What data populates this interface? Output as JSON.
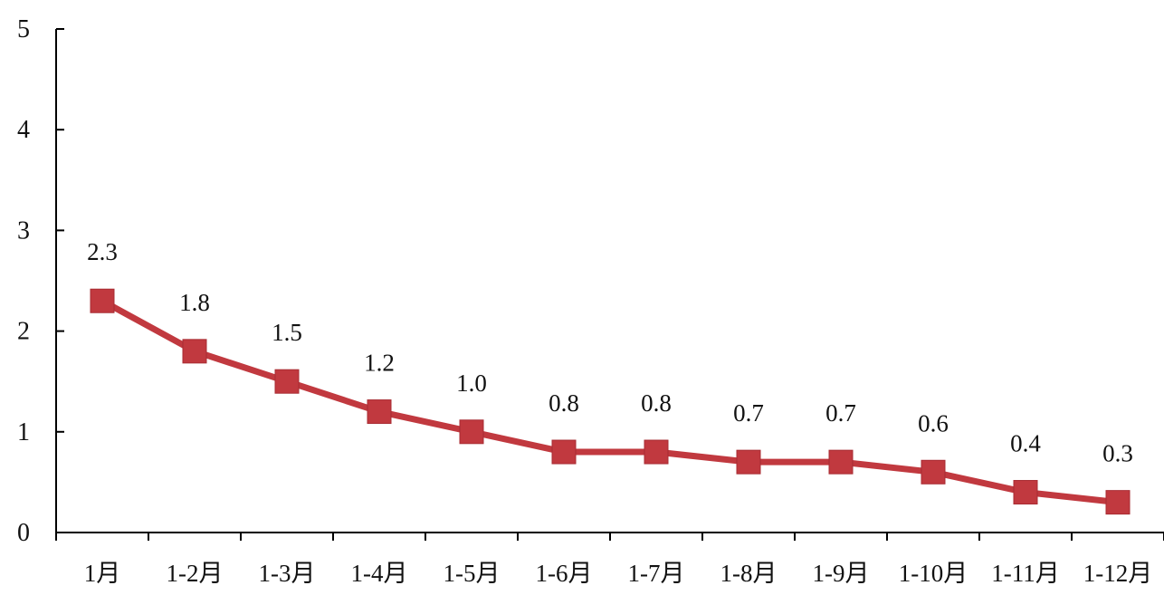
{
  "chart_data": {
    "type": "line",
    "title": "",
    "xlabel": "",
    "ylabel": "",
    "categories": [
      "1月",
      "1-2月",
      "1-3月",
      "1-4月",
      "1-5月",
      "1-6月",
      "1-7月",
      "1-8月",
      "1-9月",
      "1-10月",
      "1-11月",
      "1-12月"
    ],
    "series": [
      {
        "values": [
          2.3,
          1.8,
          1.5,
          1.2,
          1.0,
          0.8,
          0.8,
          0.7,
          0.7,
          0.6,
          0.4,
          0.3
        ],
        "labels": [
          "2.3",
          "1.8",
          "1.5",
          "1.2",
          "1.0",
          "0.8",
          "0.8",
          "0.7",
          "0.7",
          "0.6",
          "0.4",
          "0.3"
        ],
        "color": "#c1393f",
        "marker": "square"
      }
    ],
    "ylim": [
      0,
      5
    ],
    "yticks": [
      "0",
      "1",
      "2",
      "3",
      "4",
      "5"
    ],
    "grid": false,
    "legend": "none"
  }
}
